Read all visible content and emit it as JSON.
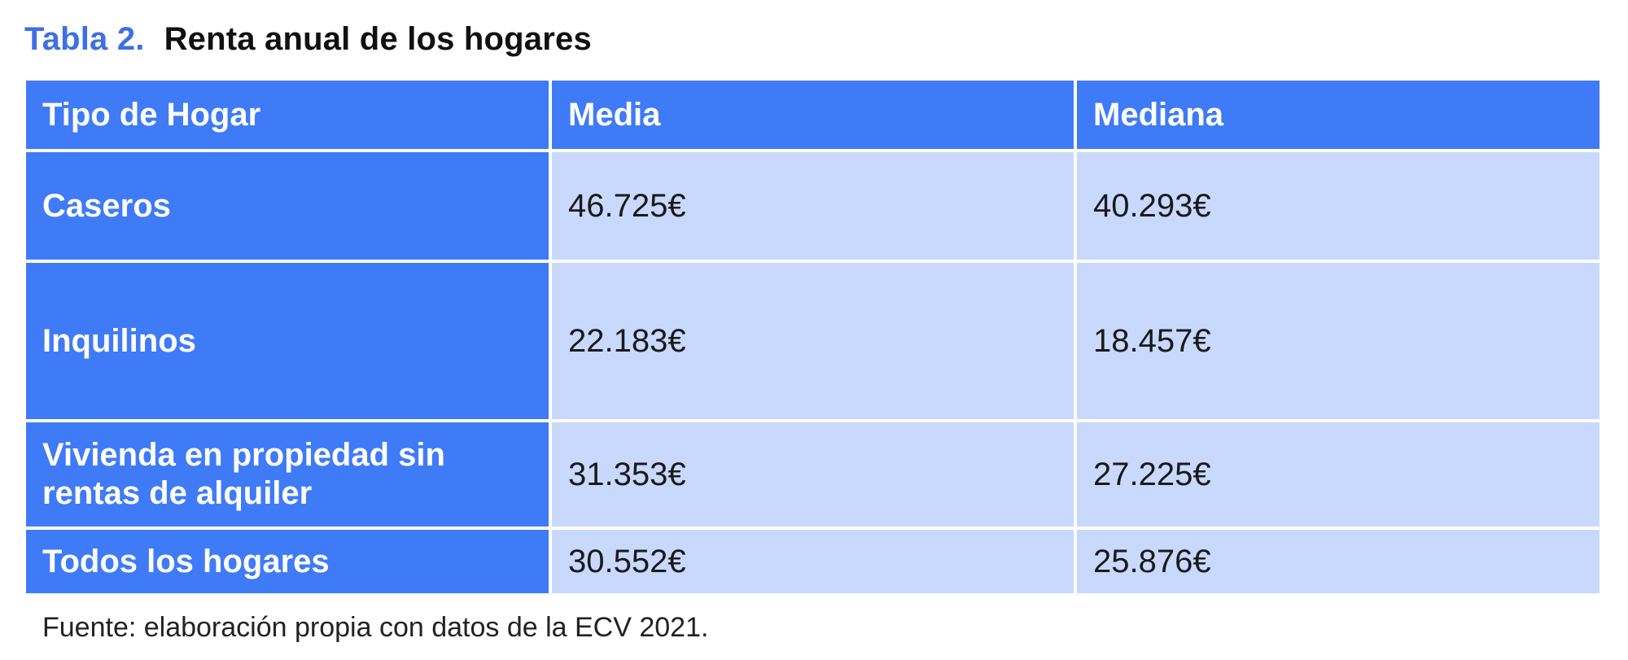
{
  "caption": {
    "label": "Tabla 2.",
    "title": "Renta anual de los hogares"
  },
  "table": {
    "headers": [
      "Tipo de Hogar",
      "Media",
      "Mediana"
    ],
    "rows": [
      {
        "tipo": "Caseros",
        "media": "46.725€",
        "mediana": "40.293€"
      },
      {
        "tipo": "Inquilinos",
        "media": "22.183€",
        "mediana": "18.457€"
      },
      {
        "tipo": "Vivienda en propiedad sin rentas de alquiler",
        "media": "31.353€",
        "mediana": "27.225€"
      },
      {
        "tipo": "Todos los hogares",
        "media": "30.552€",
        "mediana": "25.876€"
      }
    ]
  },
  "source": "Fuente: elaboración propia con datos de la ECV 2021.",
  "colors": {
    "accent": "#3f7bf7",
    "cell_fill": "#c8d9fd",
    "caption_label": "#3e6fe3"
  }
}
